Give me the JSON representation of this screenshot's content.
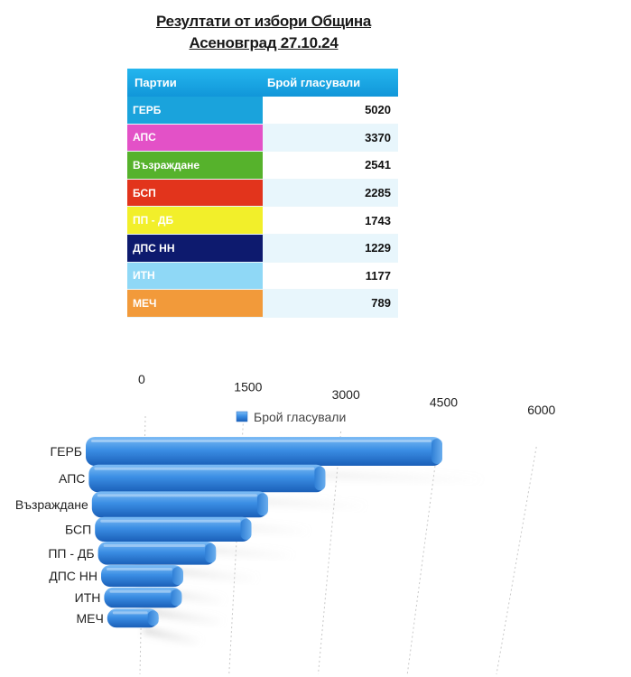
{
  "header": {
    "title_line1": "Резултати от избори Община",
    "title_line2": "Асеновград 27.10.24"
  },
  "table": {
    "col_party": "Партии",
    "col_votes": "Брой гласували",
    "rows": [
      {
        "party": "ГЕРБ",
        "votes": "5020",
        "color": "#1aa3dc"
      },
      {
        "party": "АПС",
        "votes": "3370",
        "color": "#e351c7"
      },
      {
        "party": "Възраждане",
        "votes": "2541",
        "color": "#56b22c"
      },
      {
        "party": "БСП",
        "votes": "2285",
        "color": "#e2341c"
      },
      {
        "party": "ПП - ДБ",
        "votes": "1743",
        "color": "#f2ef2a"
      },
      {
        "party": "ДПС НН",
        "votes": "1229",
        "color": "#0d1a6e"
      },
      {
        "party": "ИТН",
        "votes": "1177",
        "color": "#8fd8f6"
      },
      {
        "party": "МЕЧ",
        "votes": "789",
        "color": "#f29a3a"
      }
    ]
  },
  "chart_data": {
    "type": "bar",
    "orientation": "horizontal",
    "style": "3d",
    "categories": [
      "ГЕРБ",
      "АПС",
      "Възраждане",
      "БСП",
      "ПП - ДБ",
      "ДПС НН",
      "ИТН",
      "МЕЧ"
    ],
    "series": [
      {
        "name": "Брой гласували",
        "values": [
          5020,
          3370,
          2541,
          2285,
          1743,
          1229,
          1177,
          789
        ],
        "color": "#3d8fe0"
      }
    ],
    "xlim": [
      0,
      6000
    ],
    "x_ticks": [
      "0",
      "1500",
      "3000",
      "4500",
      "6000"
    ],
    "grid": true,
    "legend_position": "top-center"
  }
}
